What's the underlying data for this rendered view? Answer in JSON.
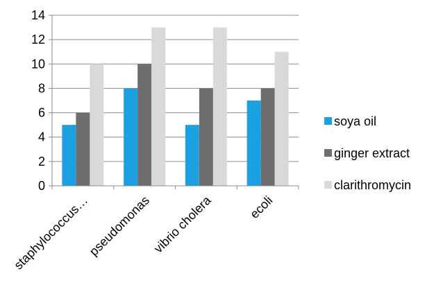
{
  "chart_data": {
    "type": "bar",
    "title": "",
    "xlabel": "",
    "ylabel": "",
    "categories": [
      "staphylococcus…",
      "pseudomonas",
      "vibrio cholera",
      "ecoli"
    ],
    "series": [
      {
        "name": "soya oil",
        "color": "#1ba1e2",
        "values": [
          5,
          8,
          5,
          7
        ]
      },
      {
        "name": "ginger extract",
        "color": "#6e6e6e",
        "values": [
          6,
          10,
          8,
          8
        ]
      },
      {
        "name": "clarithromycin",
        "color": "#d9d9d9",
        "values": [
          10,
          13,
          13,
          11
        ]
      }
    ],
    "ylim": [
      0,
      14
    ],
    "yticks": [
      "0",
      "2",
      "4",
      "6",
      "8",
      "10",
      "12",
      "14"
    ],
    "grid": true,
    "legend_position": "right"
  }
}
